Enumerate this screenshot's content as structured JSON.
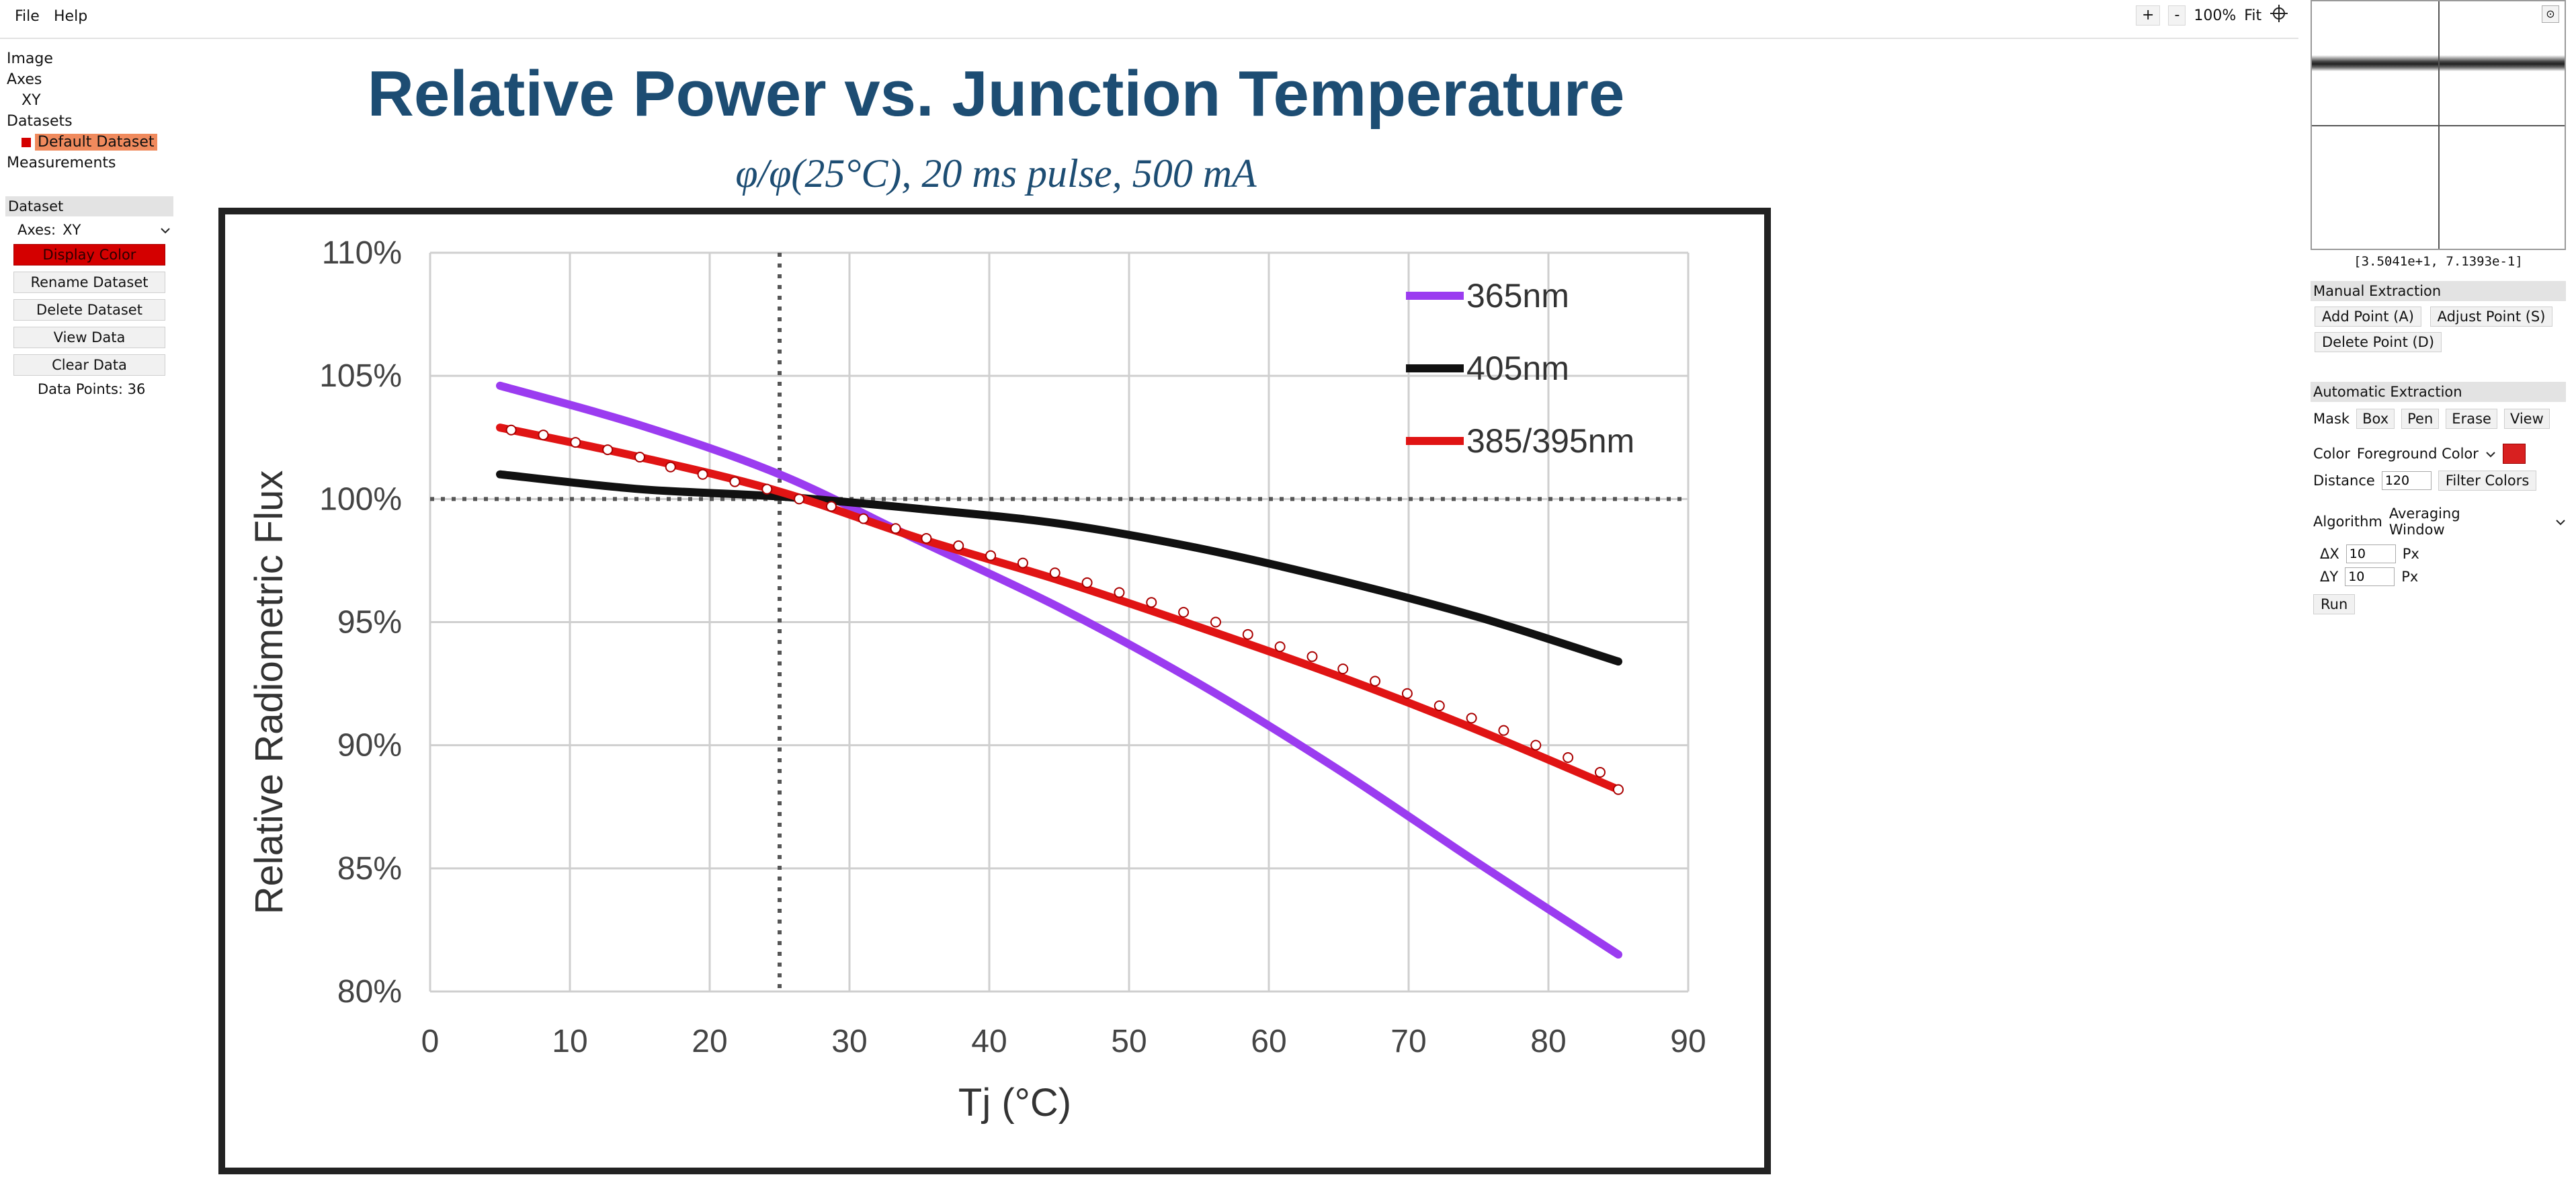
{
  "menu": {
    "file": "File",
    "help": "Help"
  },
  "zoom": {
    "plus": "+",
    "minus": "-",
    "level": "100%",
    "fit": "Fit"
  },
  "tree": {
    "image": "Image",
    "axes": "Axes",
    "axes_child": "XY",
    "datasets": "Datasets",
    "dataset_child": "Default Dataset",
    "measurements": "Measurements"
  },
  "dataset_panel": {
    "header": "Dataset",
    "axes_label": "Axes:",
    "axes_value": "XY",
    "display_color": "Display Color",
    "rename": "Rename Dataset",
    "delete": "Delete Dataset",
    "view": "View Data",
    "clear": "Clear Data",
    "points_label": "Data Points: 36"
  },
  "right_panel": {
    "coords": "[3.5041e+1, 7.1393e-1]",
    "manual_header": "Manual Extraction",
    "add_point": "Add Point (A)",
    "adjust_point": "Adjust Point (S)",
    "delete_point": "Delete Point (D)",
    "auto_header": "Automatic Extraction",
    "mask_label": "Mask",
    "mask_box": "Box",
    "mask_pen": "Pen",
    "mask_erase": "Erase",
    "mask_view": "View",
    "color_label": "Color",
    "color_value": "Foreground Color",
    "distance_label": "Distance",
    "distance_value": "120",
    "filter_colors": "Filter Colors",
    "algorithm_label": "Algorithm",
    "algorithm_value": "Averaging Window",
    "dx_label": "ΔX",
    "dx_value": "10",
    "dy_label": "ΔY",
    "dy_value": "10",
    "px_unit": "Px",
    "run": "Run",
    "accent_color": "#d82020"
  },
  "chart_data": {
    "type": "line",
    "title": "Relative Power vs. Junction Temperature",
    "subtitle": "φ/φ(25°C), 20 ms  pulse, 500 mA",
    "xlabel": "Tj (°C)",
    "ylabel": "Relative Radiometric Flux",
    "xlim": [
      0,
      90
    ],
    "ylim": [
      80,
      110
    ],
    "x_ticks": [
      "0",
      "10",
      "20",
      "30",
      "40",
      "50",
      "60",
      "70",
      "80",
      "90"
    ],
    "y_ticks": [
      "80%",
      "85%",
      "90%",
      "95%",
      "100%",
      "105%",
      "110%"
    ],
    "grid": true,
    "legend_position": "top-right",
    "series": [
      {
        "name": "365nm",
        "color": "#9b3cf0",
        "x": [
          5,
          15,
          25,
          35,
          45,
          55,
          65,
          75,
          85
        ],
        "y": [
          104.6,
          103.0,
          101.0,
          98.3,
          95.6,
          92.5,
          89.0,
          85.2,
          81.5
        ]
      },
      {
        "name": "405nm",
        "color": "#111111",
        "x": [
          5,
          15,
          25,
          35,
          45,
          55,
          65,
          75,
          85
        ],
        "y": [
          101.0,
          100.4,
          100.1,
          99.6,
          99.0,
          98.0,
          96.7,
          95.2,
          93.4
        ]
      },
      {
        "name": "385/395nm",
        "color": "#e01414",
        "x": [
          5,
          15,
          25,
          35,
          45,
          55,
          65,
          75,
          85
        ],
        "y": [
          102.9,
          101.7,
          100.3,
          98.4,
          96.7,
          94.8,
          92.8,
          90.6,
          88.2
        ]
      }
    ],
    "extracted_points": {
      "color": "#ffffff",
      "x": [
        5.8,
        8.1,
        10.4,
        12.7,
        15.0,
        17.2,
        19.5,
        21.8,
        24.1,
        26.4,
        28.7,
        31.0,
        33.3,
        35.5,
        37.8,
        40.1,
        42.4,
        44.7,
        47.0,
        49.3,
        51.6,
        53.9,
        56.2,
        58.5,
        60.8,
        63.1,
        65.3,
        67.6,
        69.9,
        72.2,
        74.5,
        76.8,
        79.1,
        81.4,
        83.7,
        85.0
      ],
      "y": [
        102.8,
        102.6,
        102.3,
        102.0,
        101.7,
        101.3,
        101.0,
        100.7,
        100.4,
        100.0,
        99.7,
        99.2,
        98.8,
        98.4,
        98.1,
        97.7,
        97.4,
        97.0,
        96.6,
        96.2,
        95.8,
        95.4,
        95.0,
        94.5,
        94.0,
        93.6,
        93.1,
        92.6,
        92.1,
        91.6,
        91.1,
        90.6,
        90.0,
        89.5,
        88.9,
        88.2
      ]
    },
    "reference_lines": {
      "x": 25,
      "y": 100
    }
  }
}
